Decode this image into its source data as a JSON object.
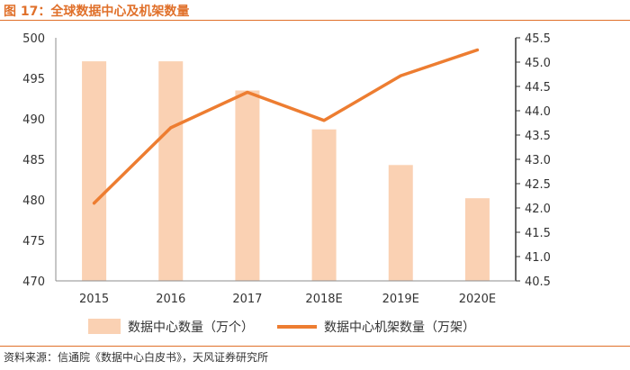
{
  "title": "图 17：全球数据中心及机架数量",
  "source": "资料来源：信通院《数据中心白皮书》，天风证券研究所",
  "colors": {
    "bar": "#fad1b3",
    "line": "#ed7d31",
    "accent": "#e0702a",
    "axis": "#333333"
  },
  "chart_data": {
    "type": "bar+line",
    "categories": [
      "2015",
      "2016",
      "2017",
      "2018E",
      "2019E",
      "2020E"
    ],
    "series": [
      {
        "name": "数据中心数量（万个）",
        "type": "bar",
        "axis": "left",
        "values": [
          497.1,
          497.1,
          493.5,
          488.7,
          484.3,
          480.2
        ]
      },
      {
        "name": "数据中心机架数量（万架）",
        "type": "line",
        "axis": "right",
        "values": [
          42.1,
          43.65,
          44.38,
          43.8,
          44.72,
          45.25
        ]
      }
    ],
    "y_left": {
      "range": [
        470,
        500
      ],
      "ticks": [
        "470",
        "475",
        "480",
        "485",
        "490",
        "495",
        "500"
      ]
    },
    "y_right": {
      "range": [
        40.5,
        45.5
      ],
      "ticks": [
        "40.5",
        "41.0",
        "41.5",
        "42.0",
        "42.5",
        "43.0",
        "43.5",
        "44.0",
        "44.5",
        "45.0",
        "45.5"
      ]
    },
    "legend_position": "bottom",
    "grid": false
  }
}
